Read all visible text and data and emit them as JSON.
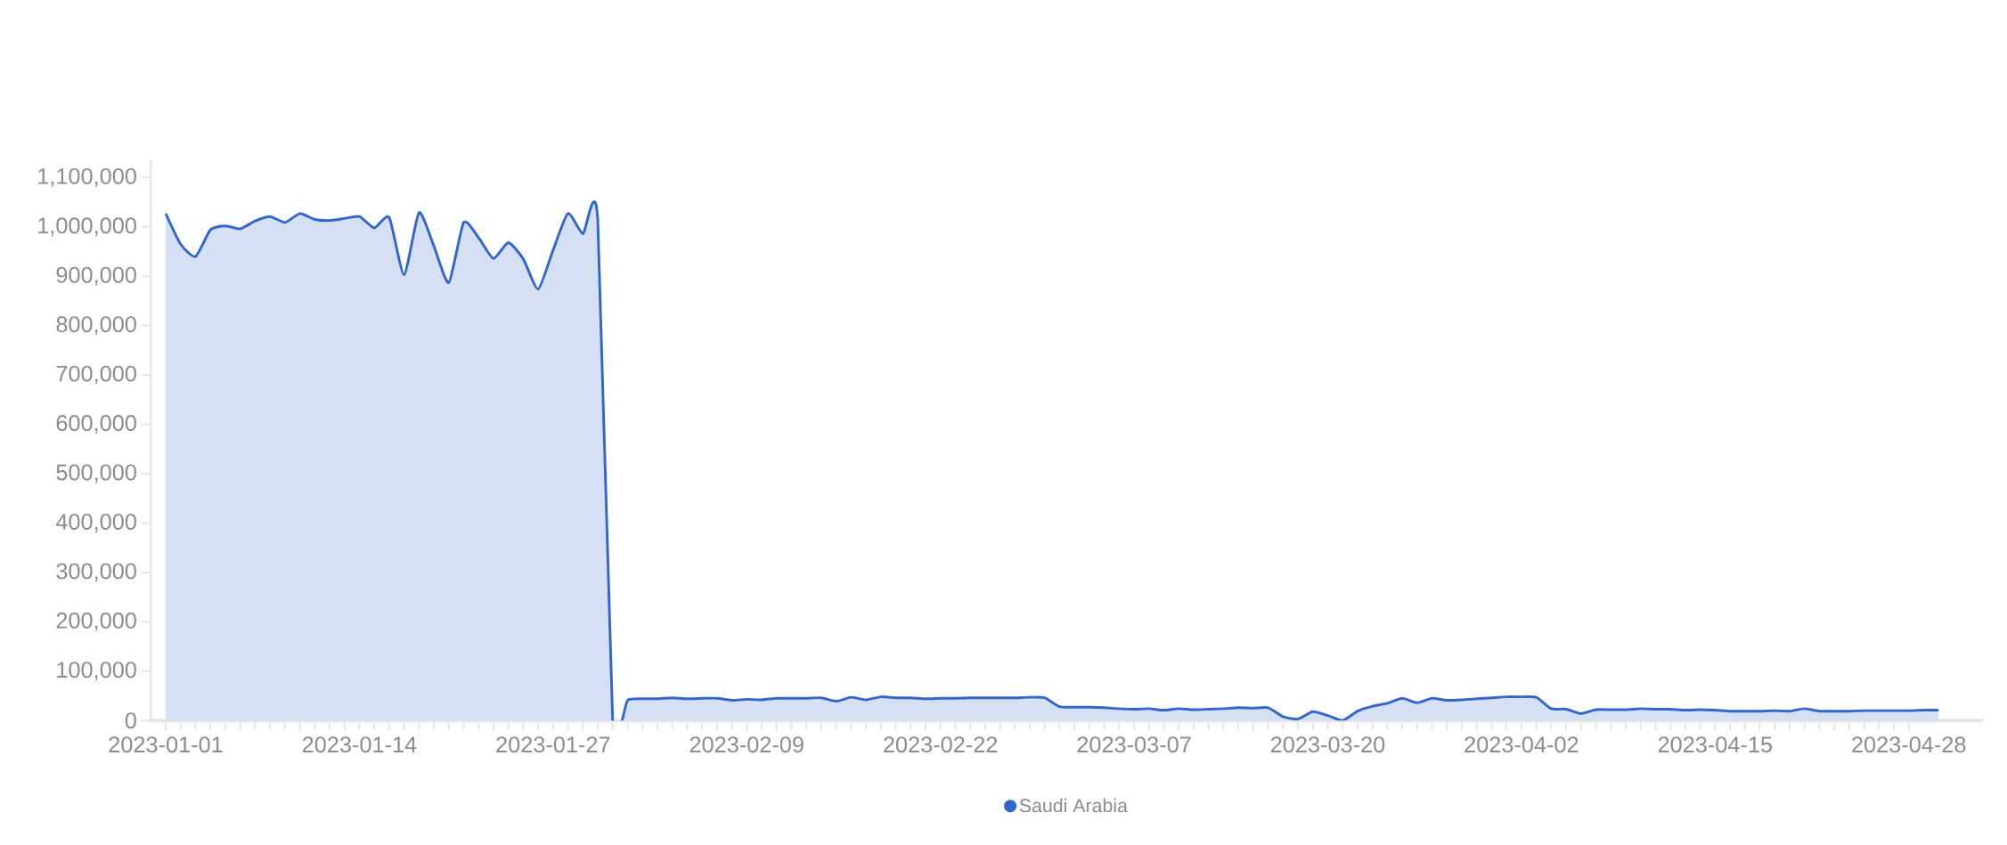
{
  "chart_data": {
    "type": "area",
    "x": [
      "2023-01-01",
      "2023-01-02",
      "2023-01-03",
      "2023-01-04",
      "2023-01-05",
      "2023-01-06",
      "2023-01-07",
      "2023-01-08",
      "2023-01-09",
      "2023-01-10",
      "2023-01-11",
      "2023-01-12",
      "2023-01-13",
      "2023-01-14",
      "2023-01-15",
      "2023-01-16",
      "2023-01-17",
      "2023-01-18",
      "2023-01-19",
      "2023-01-20",
      "2023-01-21",
      "2023-01-22",
      "2023-01-23",
      "2023-01-24",
      "2023-01-25",
      "2023-01-26",
      "2023-01-27",
      "2023-01-28",
      "2023-01-29",
      "2023-01-30",
      "2023-01-31",
      "2023-02-01",
      "2023-02-02",
      "2023-02-03",
      "2023-02-04",
      "2023-02-05",
      "2023-02-06",
      "2023-02-07",
      "2023-02-08",
      "2023-02-09",
      "2023-02-10",
      "2023-02-11",
      "2023-02-12",
      "2023-02-13",
      "2023-02-14",
      "2023-02-15",
      "2023-02-16",
      "2023-02-17",
      "2023-02-18",
      "2023-02-19",
      "2023-02-20",
      "2023-02-21",
      "2023-02-22",
      "2023-02-23",
      "2023-02-24",
      "2023-02-25",
      "2023-02-26",
      "2023-02-27",
      "2023-02-28",
      "2023-03-01",
      "2023-03-02",
      "2023-03-03",
      "2023-03-04",
      "2023-03-05",
      "2023-03-06",
      "2023-03-07",
      "2023-03-08",
      "2023-03-09",
      "2023-03-10",
      "2023-03-11",
      "2023-03-12",
      "2023-03-13",
      "2023-03-14",
      "2023-03-15",
      "2023-03-16",
      "2023-03-17",
      "2023-03-18",
      "2023-03-19",
      "2023-03-20",
      "2023-03-21",
      "2023-03-22",
      "2023-03-23",
      "2023-03-24",
      "2023-03-25",
      "2023-03-26",
      "2023-03-27",
      "2023-03-28",
      "2023-03-29",
      "2023-03-30",
      "2023-03-31",
      "2023-04-01",
      "2023-04-02",
      "2023-04-03",
      "2023-04-04",
      "2023-04-05",
      "2023-04-06",
      "2023-04-07",
      "2023-04-08",
      "2023-04-09",
      "2023-04-10",
      "2023-04-11",
      "2023-04-12",
      "2023-04-13",
      "2023-04-14",
      "2023-04-15",
      "2023-04-16",
      "2023-04-17",
      "2023-04-18",
      "2023-04-19",
      "2023-04-20",
      "2023-04-21",
      "2023-04-22",
      "2023-04-23",
      "2023-04-24",
      "2023-04-25",
      "2023-04-26",
      "2023-04-27",
      "2023-04-28",
      "2023-04-29",
      "2023-04-30"
    ],
    "series": [
      {
        "name": "Saudi Arabia",
        "color": "#3366cc",
        "values": [
          1027000,
          965000,
          940000,
          994000,
          1002000,
          996000,
          1012000,
          1021000,
          1009000,
          1027000,
          1015000,
          1013000,
          1017000,
          1021000,
          998000,
          1019000,
          903000,
          1029000,
          961000,
          887000,
          1009000,
          978000,
          936000,
          968000,
          935000,
          874000,
          953000,
          1027000,
          986000,
          1015000,
          0,
          41000,
          44000,
          44000,
          46000,
          44000,
          45000,
          45000,
          41000,
          43000,
          42000,
          45000,
          45000,
          45000,
          46000,
          39000,
          47000,
          42000,
          48000,
          46000,
          46000,
          44000,
          45000,
          45000,
          46000,
          46000,
          46000,
          46000,
          47000,
          46000,
          28000,
          27000,
          27000,
          26000,
          24000,
          23000,
          24000,
          21000,
          24000,
          22000,
          23000,
          24000,
          26000,
          25000,
          26000,
          8000,
          3000,
          18000,
          10000,
          0,
          19000,
          29000,
          35000,
          45000,
          36000,
          45000,
          41000,
          42000,
          44000,
          46000,
          48000,
          48000,
          47000,
          24000,
          23000,
          14000,
          22000,
          22000,
          22000,
          24000,
          23000,
          23000,
          21000,
          22000,
          21000,
          19000,
          19000,
          19000,
          20000,
          19000,
          24000,
          19000,
          19000,
          19000,
          20000,
          20000,
          20000,
          20000,
          21000,
          21000
        ]
      }
    ],
    "xlim": [
      "2022-12-31",
      "2023-05-03"
    ],
    "xticks": [
      "2023-01-01",
      "2023-01-14",
      "2023-01-27",
      "2023-02-09",
      "2023-02-22",
      "2023-03-07",
      "2023-03-20",
      "2023-04-02",
      "2023-04-15",
      "2023-04-28"
    ],
    "ylim": [
      0,
      1135000
    ],
    "yticks": [
      {
        "value": 0,
        "label": "0"
      },
      {
        "value": 100000,
        "label": "100,000"
      },
      {
        "value": 200000,
        "label": "200,000"
      },
      {
        "value": 300000,
        "label": "300,000"
      },
      {
        "value": 400000,
        "label": "400,000"
      },
      {
        "value": 500000,
        "label": "500,000"
      },
      {
        "value": 600000,
        "label": "600,000"
      },
      {
        "value": 700000,
        "label": "700,000"
      },
      {
        "value": 800000,
        "label": "800,000"
      },
      {
        "value": 900000,
        "label": "900,000"
      },
      {
        "value": 1000000,
        "label": "1,000,000"
      },
      {
        "value": 1100000,
        "label": "1,100,000"
      }
    ],
    "legend": "bottom"
  }
}
